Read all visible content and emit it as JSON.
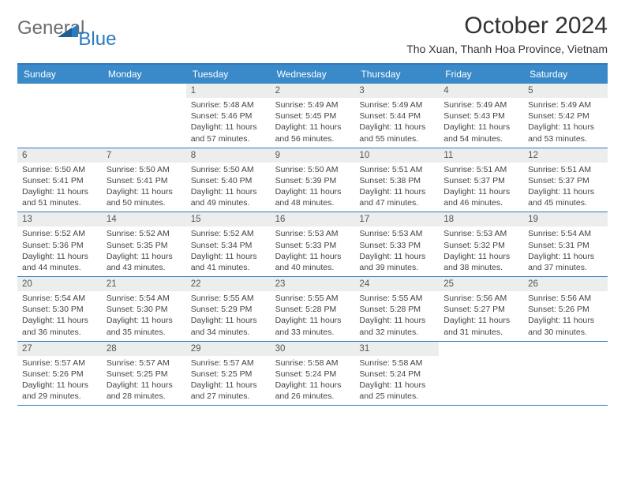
{
  "brand": {
    "text_general": "General",
    "text_blue": "Blue",
    "triangle_color": "#2b7bbf",
    "general_color": "#6b6b6b",
    "blue_color": "#2b7bbf"
  },
  "header": {
    "title": "October 2024",
    "location": "Tho Xuan, Thanh Hoa Province, Vietnam"
  },
  "colors": {
    "header_bg": "#3a8ac9",
    "header_text": "#ffffff",
    "row_border": "#2b7bbf",
    "daynum_bg": "#eceded",
    "body_text": "#444444"
  },
  "days_of_week": [
    "Sunday",
    "Monday",
    "Tuesday",
    "Wednesday",
    "Thursday",
    "Friday",
    "Saturday"
  ],
  "weeks": [
    [
      {
        "n": "",
        "sr": "",
        "ss": "",
        "dl": ""
      },
      {
        "n": "",
        "sr": "",
        "ss": "",
        "dl": ""
      },
      {
        "n": "1",
        "sr": "Sunrise: 5:48 AM",
        "ss": "Sunset: 5:46 PM",
        "dl": "Daylight: 11 hours and 57 minutes."
      },
      {
        "n": "2",
        "sr": "Sunrise: 5:49 AM",
        "ss": "Sunset: 5:45 PM",
        "dl": "Daylight: 11 hours and 56 minutes."
      },
      {
        "n": "3",
        "sr": "Sunrise: 5:49 AM",
        "ss": "Sunset: 5:44 PM",
        "dl": "Daylight: 11 hours and 55 minutes."
      },
      {
        "n": "4",
        "sr": "Sunrise: 5:49 AM",
        "ss": "Sunset: 5:43 PM",
        "dl": "Daylight: 11 hours and 54 minutes."
      },
      {
        "n": "5",
        "sr": "Sunrise: 5:49 AM",
        "ss": "Sunset: 5:42 PM",
        "dl": "Daylight: 11 hours and 53 minutes."
      }
    ],
    [
      {
        "n": "6",
        "sr": "Sunrise: 5:50 AM",
        "ss": "Sunset: 5:41 PM",
        "dl": "Daylight: 11 hours and 51 minutes."
      },
      {
        "n": "7",
        "sr": "Sunrise: 5:50 AM",
        "ss": "Sunset: 5:41 PM",
        "dl": "Daylight: 11 hours and 50 minutes."
      },
      {
        "n": "8",
        "sr": "Sunrise: 5:50 AM",
        "ss": "Sunset: 5:40 PM",
        "dl": "Daylight: 11 hours and 49 minutes."
      },
      {
        "n": "9",
        "sr": "Sunrise: 5:50 AM",
        "ss": "Sunset: 5:39 PM",
        "dl": "Daylight: 11 hours and 48 minutes."
      },
      {
        "n": "10",
        "sr": "Sunrise: 5:51 AM",
        "ss": "Sunset: 5:38 PM",
        "dl": "Daylight: 11 hours and 47 minutes."
      },
      {
        "n": "11",
        "sr": "Sunrise: 5:51 AM",
        "ss": "Sunset: 5:37 PM",
        "dl": "Daylight: 11 hours and 46 minutes."
      },
      {
        "n": "12",
        "sr": "Sunrise: 5:51 AM",
        "ss": "Sunset: 5:37 PM",
        "dl": "Daylight: 11 hours and 45 minutes."
      }
    ],
    [
      {
        "n": "13",
        "sr": "Sunrise: 5:52 AM",
        "ss": "Sunset: 5:36 PM",
        "dl": "Daylight: 11 hours and 44 minutes."
      },
      {
        "n": "14",
        "sr": "Sunrise: 5:52 AM",
        "ss": "Sunset: 5:35 PM",
        "dl": "Daylight: 11 hours and 43 minutes."
      },
      {
        "n": "15",
        "sr": "Sunrise: 5:52 AM",
        "ss": "Sunset: 5:34 PM",
        "dl": "Daylight: 11 hours and 41 minutes."
      },
      {
        "n": "16",
        "sr": "Sunrise: 5:53 AM",
        "ss": "Sunset: 5:33 PM",
        "dl": "Daylight: 11 hours and 40 minutes."
      },
      {
        "n": "17",
        "sr": "Sunrise: 5:53 AM",
        "ss": "Sunset: 5:33 PM",
        "dl": "Daylight: 11 hours and 39 minutes."
      },
      {
        "n": "18",
        "sr": "Sunrise: 5:53 AM",
        "ss": "Sunset: 5:32 PM",
        "dl": "Daylight: 11 hours and 38 minutes."
      },
      {
        "n": "19",
        "sr": "Sunrise: 5:54 AM",
        "ss": "Sunset: 5:31 PM",
        "dl": "Daylight: 11 hours and 37 minutes."
      }
    ],
    [
      {
        "n": "20",
        "sr": "Sunrise: 5:54 AM",
        "ss": "Sunset: 5:30 PM",
        "dl": "Daylight: 11 hours and 36 minutes."
      },
      {
        "n": "21",
        "sr": "Sunrise: 5:54 AM",
        "ss": "Sunset: 5:30 PM",
        "dl": "Daylight: 11 hours and 35 minutes."
      },
      {
        "n": "22",
        "sr": "Sunrise: 5:55 AM",
        "ss": "Sunset: 5:29 PM",
        "dl": "Daylight: 11 hours and 34 minutes."
      },
      {
        "n": "23",
        "sr": "Sunrise: 5:55 AM",
        "ss": "Sunset: 5:28 PM",
        "dl": "Daylight: 11 hours and 33 minutes."
      },
      {
        "n": "24",
        "sr": "Sunrise: 5:55 AM",
        "ss": "Sunset: 5:28 PM",
        "dl": "Daylight: 11 hours and 32 minutes."
      },
      {
        "n": "25",
        "sr": "Sunrise: 5:56 AM",
        "ss": "Sunset: 5:27 PM",
        "dl": "Daylight: 11 hours and 31 minutes."
      },
      {
        "n": "26",
        "sr": "Sunrise: 5:56 AM",
        "ss": "Sunset: 5:26 PM",
        "dl": "Daylight: 11 hours and 30 minutes."
      }
    ],
    [
      {
        "n": "27",
        "sr": "Sunrise: 5:57 AM",
        "ss": "Sunset: 5:26 PM",
        "dl": "Daylight: 11 hours and 29 minutes."
      },
      {
        "n": "28",
        "sr": "Sunrise: 5:57 AM",
        "ss": "Sunset: 5:25 PM",
        "dl": "Daylight: 11 hours and 28 minutes."
      },
      {
        "n": "29",
        "sr": "Sunrise: 5:57 AM",
        "ss": "Sunset: 5:25 PM",
        "dl": "Daylight: 11 hours and 27 minutes."
      },
      {
        "n": "30",
        "sr": "Sunrise: 5:58 AM",
        "ss": "Sunset: 5:24 PM",
        "dl": "Daylight: 11 hours and 26 minutes."
      },
      {
        "n": "31",
        "sr": "Sunrise: 5:58 AM",
        "ss": "Sunset: 5:24 PM",
        "dl": "Daylight: 11 hours and 25 minutes."
      },
      {
        "n": "",
        "sr": "",
        "ss": "",
        "dl": ""
      },
      {
        "n": "",
        "sr": "",
        "ss": "",
        "dl": ""
      }
    ]
  ]
}
